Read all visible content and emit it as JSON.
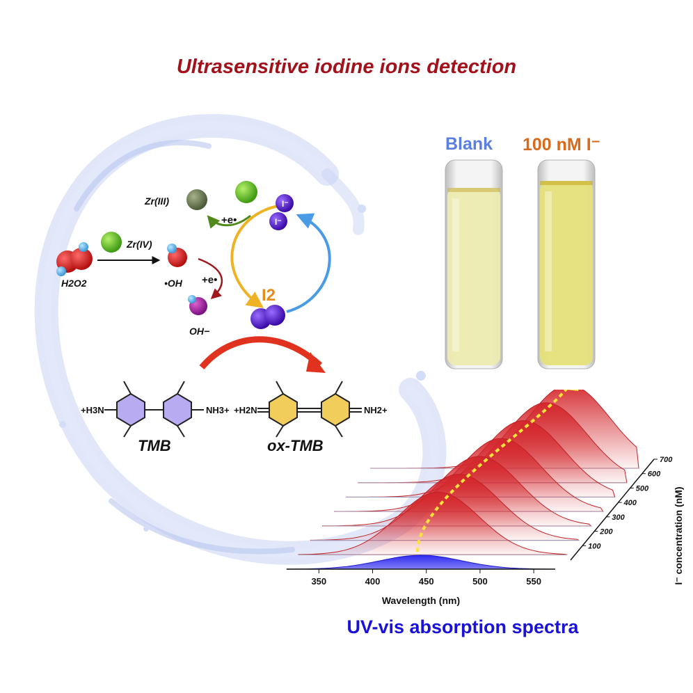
{
  "title": "Ultrasensitive iodine ions detection",
  "vials": {
    "blank_label": "Blank",
    "iodide_label": "100 nM I⁻",
    "blank_color": "#ecebb0",
    "iodide_color": "#e6e07a"
  },
  "mechanism": {
    "zr4": "Zr(IV)",
    "zr3": "Zr(III)",
    "h2o2": "H2O2",
    "oh_radical": "•OH",
    "hydroxide": "OH−",
    "electron_top": "+e•",
    "electron_mid": "+e•",
    "iodide": "I⁻",
    "iodine": "I2",
    "tmb_label": "TMB",
    "oxtmb_label": "ox-TMB",
    "tmb_left_group": "+H3N",
    "tmb_right_group": "NH3+",
    "oxtmb_left_group": "+H2N",
    "oxtmb_right_group": "NH2+"
  },
  "chart_data": {
    "type": "area",
    "xlabel": "Wavelength (nm)",
    "zlabel": "I⁻ concentration (nM)",
    "x_ticks": [
      350,
      400,
      450,
      500,
      550
    ],
    "z_ticks": [
      100,
      200,
      300,
      400,
      500,
      600,
      700
    ],
    "xlim": [
      320,
      570
    ],
    "zlim": [
      0,
      700
    ],
    "series": [
      {
        "concentration": 0,
        "peak_wavelength": 445
      },
      {
        "concentration": 100,
        "peak_wavelength": 450
      },
      {
        "concentration": 200,
        "peak_wavelength": 458
      },
      {
        "concentration": 300,
        "peak_wavelength": 466
      },
      {
        "concentration": 400,
        "peak_wavelength": 475
      },
      {
        "concentration": 500,
        "peak_wavelength": 485
      },
      {
        "concentration": 600,
        "peak_wavelength": 495
      },
      {
        "concentration": 700,
        "peak_wavelength": 505
      }
    ],
    "caption": "UV-vis absorption spectra"
  }
}
